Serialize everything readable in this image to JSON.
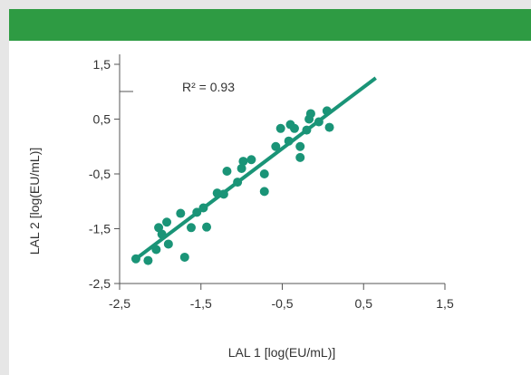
{
  "header": {
    "color": "#2e9b43"
  },
  "chart_data": {
    "type": "scatter",
    "xlabel": "LAL 1 [log(EU/mL)]",
    "ylabel": "LAL 2 [log(EU/mL)]",
    "xlim": [
      -2.5,
      1.5
    ],
    "ylim": [
      -2.5,
      1.5
    ],
    "xticks": [
      "-2,5",
      "-1,5",
      "-0,5",
      "0,5",
      "1,5"
    ],
    "yticks": [
      "1,5",
      "0,5",
      "-0,5",
      "-1,5",
      "-2,5"
    ],
    "annotation": "R² = 0.93",
    "marker_color": "#1a9477",
    "line_color": "#1a9477",
    "trend_line": {
      "x": [
        -2.3,
        0.65
      ],
      "y": [
        -2.05,
        1.25
      ]
    },
    "points": [
      {
        "x": -2.3,
        "y": -2.05
      },
      {
        "x": -2.15,
        "y": -2.08
      },
      {
        "x": -2.05,
        "y": -1.88
      },
      {
        "x": -2.02,
        "y": -1.48
      },
      {
        "x": -1.98,
        "y": -1.6
      },
      {
        "x": -1.92,
        "y": -1.38
      },
      {
        "x": -1.9,
        "y": -1.78
      },
      {
        "x": -1.75,
        "y": -1.22
      },
      {
        "x": -1.7,
        "y": -2.02
      },
      {
        "x": -1.62,
        "y": -1.48
      },
      {
        "x": -1.55,
        "y": -1.2
      },
      {
        "x": -1.47,
        "y": -1.12
      },
      {
        "x": -1.43,
        "y": -1.47
      },
      {
        "x": -1.3,
        "y": -0.85
      },
      {
        "x": -1.22,
        "y": -0.87
      },
      {
        "x": -1.18,
        "y": -0.45
      },
      {
        "x": -1.05,
        "y": -0.65
      },
      {
        "x": -1.0,
        "y": -0.4
      },
      {
        "x": -0.98,
        "y": -0.27
      },
      {
        "x": -0.88,
        "y": -0.24
      },
      {
        "x": -0.72,
        "y": -0.5
      },
      {
        "x": -0.72,
        "y": -0.82
      },
      {
        "x": -0.58,
        "y": 0.0
      },
      {
        "x": -0.52,
        "y": 0.33
      },
      {
        "x": -0.42,
        "y": 0.1
      },
      {
        "x": -0.4,
        "y": 0.4
      },
      {
        "x": -0.35,
        "y": 0.33
      },
      {
        "x": -0.28,
        "y": 0.0
      },
      {
        "x": -0.28,
        "y": -0.2
      },
      {
        "x": -0.2,
        "y": 0.3
      },
      {
        "x": -0.15,
        "y": 0.6
      },
      {
        "x": -0.17,
        "y": 0.5
      },
      {
        "x": -0.05,
        "y": 0.45
      },
      {
        "x": 0.05,
        "y": 0.65
      },
      {
        "x": 0.08,
        "y": 0.35
      }
    ]
  }
}
